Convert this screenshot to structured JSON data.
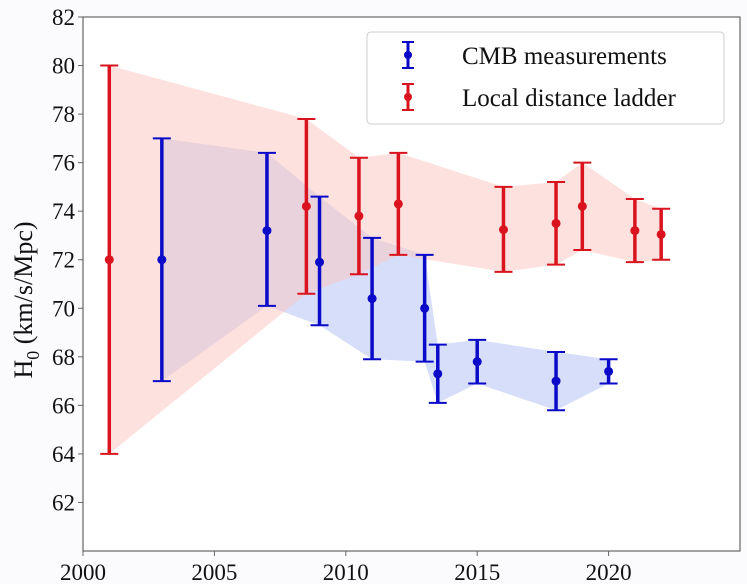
{
  "chart_data": {
    "type": "scatter",
    "title": "",
    "xlabel": "",
    "ylabel": "H0 (km/s/Mpc)",
    "ylabel_main": "H",
    "ylabel_sub": "0",
    "ylabel_rest": " (km/s/Mpc)",
    "xlim": [
      2000,
      2025
    ],
    "ylim": [
      60,
      82
    ],
    "xticks": [
      2000,
      2005,
      2010,
      2015,
      2020
    ],
    "xtick_labels": [
      "2000",
      "2005",
      "2010",
      "2015",
      "2020"
    ],
    "yticks": [
      62,
      64,
      66,
      68,
      70,
      72,
      74,
      76,
      78,
      80,
      82
    ],
    "ytick_labels": [
      "62",
      "64",
      "66",
      "68",
      "70",
      "72",
      "74",
      "76",
      "78",
      "80",
      "82"
    ],
    "grid": false,
    "legend": {
      "position": "top-right",
      "entries": [
        "CMB measurements",
        "Local distance ladder"
      ]
    },
    "series": [
      {
        "name": "CMB measurements",
        "color": "#0a0ac8",
        "band_color": "#b4c3f5",
        "points": [
          {
            "x": 2003,
            "y": 72.0,
            "lo": 67.0,
            "hi": 77.0
          },
          {
            "x": 2007,
            "y": 73.2,
            "lo": 70.1,
            "hi": 76.4
          },
          {
            "x": 2009,
            "y": 71.9,
            "lo": 69.3,
            "hi": 74.6
          },
          {
            "x": 2011,
            "y": 70.4,
            "lo": 67.9,
            "hi": 72.9
          },
          {
            "x": 2013,
            "y": 70.0,
            "lo": 67.8,
            "hi": 72.2
          },
          {
            "x": 2013.5,
            "y": 67.3,
            "lo": 66.1,
            "hi": 68.5
          },
          {
            "x": 2015,
            "y": 67.8,
            "lo": 66.9,
            "hi": 68.7
          },
          {
            "x": 2018,
            "y": 67.0,
            "lo": 65.8,
            "hi": 68.2
          },
          {
            "x": 2020,
            "y": 67.4,
            "lo": 66.9,
            "hi": 67.9
          }
        ]
      },
      {
        "name": "Local distance ladder",
        "color": "#d9141e",
        "band_color": "#fbc8c3",
        "points": [
          {
            "x": 2001,
            "y": 72.0,
            "lo": 64.0,
            "hi": 80.0
          },
          {
            "x": 2008.5,
            "y": 74.2,
            "lo": 70.6,
            "hi": 77.8
          },
          {
            "x": 2010.5,
            "y": 73.8,
            "lo": 71.4,
            "hi": 76.2
          },
          {
            "x": 2012,
            "y": 74.3,
            "lo": 72.2,
            "hi": 76.4
          },
          {
            "x": 2016,
            "y": 73.24,
            "lo": 71.5,
            "hi": 75.0
          },
          {
            "x": 2018,
            "y": 73.5,
            "lo": 71.8,
            "hi": 75.2
          },
          {
            "x": 2019,
            "y": 74.2,
            "lo": 72.4,
            "hi": 76.0
          },
          {
            "x": 2021,
            "y": 73.2,
            "lo": 71.9,
            "hi": 74.5
          },
          {
            "x": 2022,
            "y": 73.04,
            "lo": 72.0,
            "hi": 74.1
          }
        ]
      }
    ]
  }
}
